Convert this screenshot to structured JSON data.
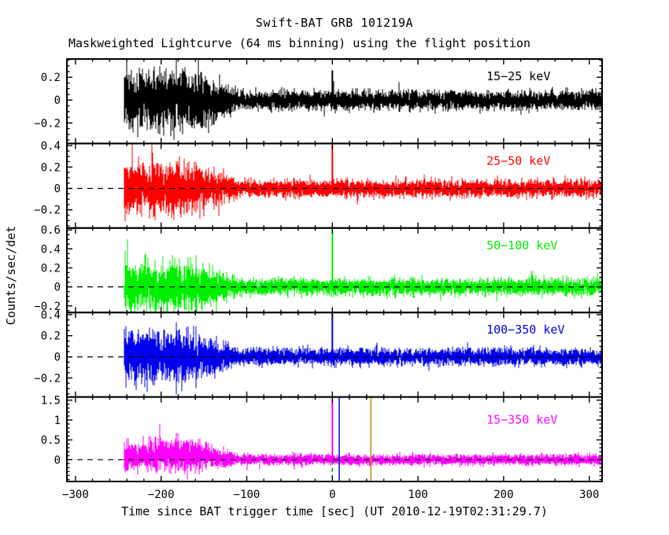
{
  "chart_data": {
    "type": "line",
    "title": "Swift-BAT GRB 101219A",
    "subtitle": "Maskweighted Lightcurve (64 ms binning) using the flight position",
    "xlabel": "Time since BAT trigger time [sec] (UT 2010-12-19T02:31:29.7)",
    "ylabel": "Counts/sec/det",
    "grid": false,
    "legend": "none",
    "xlim": [
      -310,
      315
    ],
    "x_major_ticks": [
      -300,
      -200,
      -100,
      0,
      100,
      200,
      300
    ],
    "x_tick_labels": [
      "−300",
      "−200",
      "−100",
      "0",
      "100",
      "200",
      "300"
    ],
    "x_minor_step": 20,
    "data_start": -243,
    "data_end": 315,
    "noise_model": {
      "description": "Mask-weighted background noise: high amplitude from t=-243 s until about -160 s, decaying to a low steady level by t=-110 s; short GRB spike at t=0 s.",
      "high_region": [
        -243,
        -160
      ],
      "decay_end": -110
    },
    "panels": [
      {
        "label": "15−25 keV",
        "color": "#000000",
        "ylim": [
          -0.38,
          0.36
        ],
        "yticks": [
          -0.2,
          0,
          0.2
        ],
        "ytick_labels": [
          "−0.2",
          "0",
          "0.2"
        ],
        "y_minor_step": 0.05,
        "sigma_high": 0.12,
        "sigma_low": 0.04,
        "mean_high": 0,
        "spike": {
          "t": 0,
          "height": 0.26
        },
        "zero_dash": false
      },
      {
        "label": "25−50 keV",
        "color": "#ff0000",
        "ylim": [
          -0.37,
          0.42
        ],
        "yticks": [
          -0.2,
          0,
          0.2,
          0.4
        ],
        "ytick_labels": [
          "−0.2",
          "0",
          "0.2",
          "0.4"
        ],
        "y_minor_step": 0.05,
        "sigma_high": 0.11,
        "sigma_low": 0.038,
        "mean_high": 0,
        "spike": {
          "t": 0,
          "height": 0.42
        },
        "zero_dash": true
      },
      {
        "label": "50−100 keV",
        "color": "#00ee00",
        "ylim": [
          -0.27,
          0.62
        ],
        "yticks": [
          -0.2,
          0,
          0.2,
          0.4,
          0.6
        ],
        "ytick_labels": [
          "−0.2",
          "0",
          "0.2",
          "0.4",
          "0.6"
        ],
        "y_minor_step": 0.05,
        "sigma_high": 0.12,
        "sigma_low": 0.042,
        "mean_high": 0,
        "spike": {
          "t": 0,
          "height": 0.6
        },
        "zero_dash": true
      },
      {
        "label": "100−350 keV",
        "color": "#0000ee",
        "ylim": [
          -0.38,
          0.42
        ],
        "yticks": [
          -0.2,
          0,
          0.2,
          0.4
        ],
        "ytick_labels": [
          "−0.2",
          "0",
          "0.2",
          "0.4"
        ],
        "y_minor_step": 0.05,
        "sigma_high": 0.115,
        "sigma_low": 0.038,
        "mean_high": 0,
        "spike": {
          "t": 0,
          "height": 0.41
        },
        "zero_dash": true
      },
      {
        "label": "15−350 keV",
        "color": "#ff00ff",
        "ylim": [
          -0.55,
          1.58
        ],
        "yticks": [
          0,
          0.5,
          1,
          1.5
        ],
        "ytick_labels": [
          "0",
          "0.5",
          "1",
          "1.5"
        ],
        "y_minor_step": 0.1,
        "sigma_high": 0.19,
        "sigma_low": 0.065,
        "mean_high": 0.1,
        "spike": {
          "t": 0,
          "height": 1.5
        },
        "zero_dash": true,
        "markers": [
          {
            "t": 0,
            "color": "#008800",
            "dash": true
          },
          {
            "t": 8,
            "color": "#0000ee",
            "dash": false
          },
          {
            "t": 45,
            "color": "#cc8800",
            "dash": false
          }
        ]
      }
    ]
  }
}
